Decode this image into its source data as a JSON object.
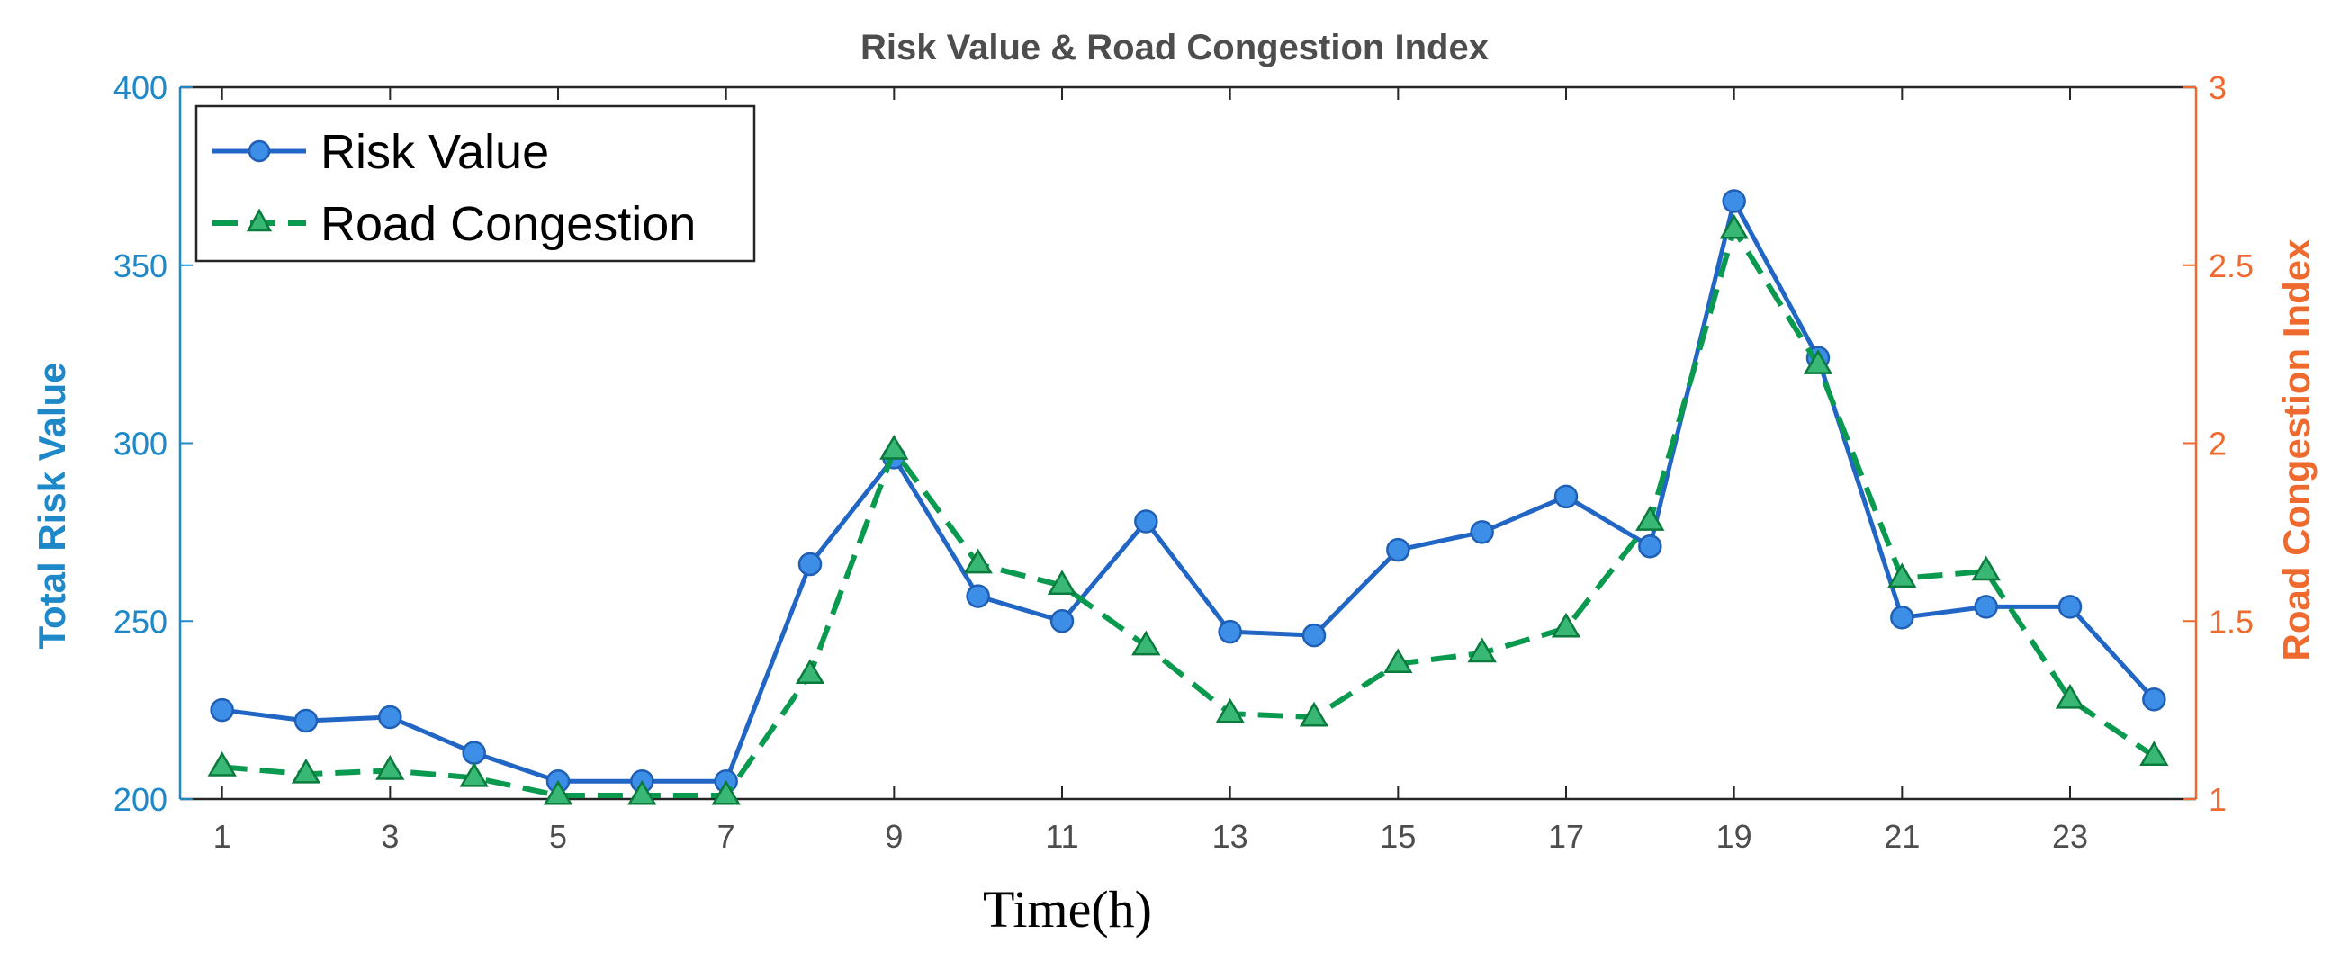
{
  "chart_data": {
    "type": "line",
    "title": "Risk Value & Road Congestion Index",
    "xlabel": "Time(h)",
    "ylabel_left": "Total Risk Value",
    "ylabel_right": "Road Congestion Index",
    "x": [
      1,
      2,
      3,
      4,
      5,
      6,
      7,
      8,
      9,
      10,
      11,
      12,
      13,
      14,
      15,
      16,
      17,
      18,
      19,
      20,
      21,
      22,
      23,
      24
    ],
    "xlim": [
      0.5,
      24.5
    ],
    "x_ticks": [
      1,
      3,
      5,
      7,
      9,
      11,
      13,
      15,
      17,
      19,
      21,
      23
    ],
    "x_tick_labels": [
      "1",
      "3",
      "5",
      "7",
      "9",
      "11",
      "13",
      "15",
      "17",
      "19",
      "21",
      "23"
    ],
    "ylim_left": [
      200,
      400
    ],
    "y_ticks_left": [
      200,
      250,
      300,
      350,
      400
    ],
    "y_tick_labels_left": [
      "200",
      "250",
      "300",
      "350",
      "400"
    ],
    "ylim_right": [
      1,
      3
    ],
    "y_ticks_right": [
      1,
      1.5,
      2,
      2.5,
      3
    ],
    "y_tick_labels_right": [
      "1",
      "1.5",
      "2",
      "2.5",
      "3"
    ],
    "grid": false,
    "legend_position": "top-left",
    "series": [
      {
        "name": "Risk Value",
        "axis": "left",
        "style": "solid",
        "marker": "circle",
        "color": "#2166C4",
        "values": [
          225,
          222,
          223,
          213,
          205,
          205,
          205,
          266,
          296,
          257,
          250,
          278,
          247,
          246,
          270,
          275,
          285,
          271,
          368,
          324,
          251,
          254,
          254,
          228
        ]
      },
      {
        "name": "Road Congestion",
        "axis": "right",
        "style": "dashed",
        "marker": "triangle",
        "color": "#0A9A4F",
        "values": [
          1.09,
          1.07,
          1.08,
          1.06,
          1.01,
          1.01,
          1.01,
          1.35,
          1.98,
          1.66,
          1.6,
          1.43,
          1.24,
          1.23,
          1.38,
          1.41,
          1.48,
          1.78,
          2.6,
          2.22,
          1.62,
          1.64,
          1.28,
          1.12
        ]
      }
    ]
  },
  "colors": {
    "left_axis": "#1E88C8",
    "right_axis": "#EF6A2E",
    "axis_frame": "#262626",
    "title": "#4D4D4D",
    "xlabel": "#000000"
  }
}
